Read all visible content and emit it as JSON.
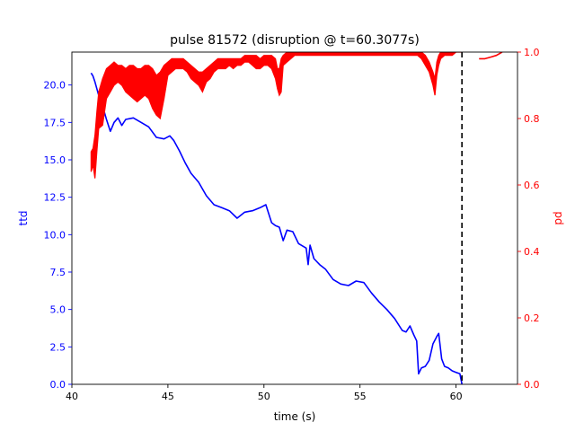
{
  "chart_data": {
    "type": "line",
    "title": "pulse 81572 (disruption @ t=60.3077s)",
    "xlabel": "time (s)",
    "ylabel_left": "ttd",
    "ylabel_right": "pd",
    "xlim": [
      40.0,
      63.2
    ],
    "ylim_left": [
      0.0,
      22.2
    ],
    "ylim_right": [
      0.0,
      1.0
    ],
    "x_ticks": [
      40,
      45,
      50,
      55,
      60
    ],
    "y_ticks_left": [
      0.0,
      2.5,
      5.0,
      7.5,
      10.0,
      12.5,
      15.0,
      17.5,
      20.0
    ],
    "y_ticks_right": [
      0.0,
      0.2,
      0.4,
      0.6,
      0.8,
      1.0
    ],
    "disruption_time": 60.3077,
    "colors": {
      "ttd": "#0000ff",
      "pd": "#ff0000",
      "axis_left": "#0000ff",
      "axis_right": "#ff0000",
      "vline": "#000000"
    },
    "series": [
      {
        "axis": "left",
        "x": [
          41.0,
          41.1,
          41.2,
          41.4,
          41.6,
          41.8,
          42.0,
          42.2,
          42.4,
          42.6,
          42.8,
          43.2,
          43.6,
          44.0,
          44.4,
          44.8,
          45.1,
          45.3,
          45.6,
          45.9,
          46.2,
          46.6,
          47.0,
          47.4,
          47.8,
          48.2,
          48.6,
          49.0,
          49.4,
          49.8,
          50.1,
          50.4,
          50.6,
          50.8,
          51.0,
          51.2,
          51.5,
          51.8,
          52.2,
          52.3,
          52.4,
          52.6,
          52.9,
          53.2,
          53.6,
          54.0,
          54.4,
          54.8,
          55.2,
          55.6,
          56.0,
          56.4,
          56.8,
          57.2,
          57.4,
          57.6,
          57.8,
          57.95,
          58.05,
          58.2,
          58.4,
          58.6,
          58.8,
          59.0,
          59.1,
          59.25,
          59.4,
          59.6,
          59.8,
          60.0,
          60.2,
          60.31
        ],
        "values": [
          20.8,
          20.6,
          20.2,
          19.3,
          18.6,
          17.7,
          16.9,
          17.5,
          17.8,
          17.3,
          17.7,
          17.8,
          17.5,
          17.2,
          16.5,
          16.4,
          16.6,
          16.3,
          15.6,
          14.8,
          14.1,
          13.5,
          12.6,
          12.0,
          11.8,
          11.6,
          11.1,
          11.5,
          11.6,
          11.8,
          12.0,
          10.8,
          10.6,
          10.5,
          9.6,
          10.3,
          10.2,
          9.4,
          9.1,
          8.0,
          9.3,
          8.4,
          8.0,
          7.7,
          7.0,
          6.7,
          6.6,
          6.9,
          6.8,
          6.1,
          5.5,
          5.0,
          4.4,
          3.6,
          3.5,
          3.9,
          3.3,
          2.9,
          0.7,
          1.1,
          1.2,
          1.6,
          2.7,
          3.2,
          3.4,
          1.7,
          1.2,
          1.1,
          0.9,
          0.8,
          0.7,
          0.0
        ]
      },
      {
        "axis": "right",
        "type": "band",
        "x": [
          41.0,
          41.1,
          41.2,
          41.3,
          41.4,
          41.6,
          41.8,
          42.0,
          42.2,
          42.4,
          42.6,
          42.8,
          43.0,
          43.2,
          43.4,
          43.6,
          43.8,
          44.0,
          44.2,
          44.4,
          44.6,
          44.8,
          45.0,
          45.2,
          45.4,
          45.6,
          45.8,
          46.0,
          46.2,
          46.4,
          46.6,
          46.8,
          47.0,
          47.2,
          47.4,
          47.6,
          47.8,
          48.0,
          48.2,
          48.4,
          48.6,
          48.8,
          49.0,
          49.2,
          49.4,
          49.6,
          49.8,
          50.0,
          50.2,
          50.4,
          50.6,
          50.7,
          50.8,
          50.9,
          51.0,
          51.2,
          51.4,
          51.6,
          52.0,
          52.5,
          53.0,
          54.0,
          55.0,
          56.0,
          57.0,
          57.5,
          58.0,
          58.2,
          58.4,
          58.6,
          58.8,
          58.9,
          59.0,
          59.1,
          59.2,
          59.4,
          59.6,
          59.8,
          60.0,
          60.2,
          60.31
        ],
        "low": [
          0.64,
          0.66,
          0.62,
          0.7,
          0.77,
          0.78,
          0.86,
          0.88,
          0.9,
          0.91,
          0.9,
          0.88,
          0.87,
          0.86,
          0.85,
          0.86,
          0.87,
          0.86,
          0.83,
          0.81,
          0.8,
          0.86,
          0.93,
          0.94,
          0.95,
          0.95,
          0.95,
          0.94,
          0.92,
          0.91,
          0.9,
          0.88,
          0.91,
          0.92,
          0.94,
          0.95,
          0.95,
          0.95,
          0.96,
          0.95,
          0.96,
          0.96,
          0.97,
          0.97,
          0.96,
          0.95,
          0.95,
          0.96,
          0.96,
          0.95,
          0.92,
          0.89,
          0.87,
          0.88,
          0.96,
          0.97,
          0.98,
          0.99,
          0.99,
          0.99,
          0.99,
          0.99,
          0.99,
          0.99,
          0.99,
          0.99,
          0.99,
          0.98,
          0.96,
          0.94,
          0.9,
          0.87,
          0.93,
          0.96,
          0.98,
          0.99,
          0.99,
          0.99,
          1.0,
          1.0,
          1.0
        ],
        "high": [
          0.7,
          0.71,
          0.75,
          0.82,
          0.88,
          0.92,
          0.95,
          0.96,
          0.97,
          0.96,
          0.96,
          0.95,
          0.96,
          0.96,
          0.95,
          0.95,
          0.96,
          0.96,
          0.95,
          0.93,
          0.94,
          0.96,
          0.97,
          0.98,
          0.98,
          0.98,
          0.98,
          0.97,
          0.96,
          0.95,
          0.94,
          0.94,
          0.95,
          0.96,
          0.97,
          0.98,
          0.98,
          0.98,
          0.98,
          0.98,
          0.98,
          0.98,
          0.99,
          0.99,
          0.99,
          0.99,
          0.98,
          0.99,
          0.99,
          0.99,
          0.98,
          0.95,
          0.95,
          0.98,
          0.99,
          1.0,
          1.0,
          1.0,
          1.0,
          1.0,
          1.0,
          1.0,
          1.0,
          1.0,
          1.0,
          1.0,
          1.0,
          1.0,
          0.99,
          0.97,
          0.94,
          0.92,
          0.97,
          0.99,
          1.0,
          1.0,
          1.0,
          1.0,
          1.0,
          1.0,
          1.0
        ]
      },
      {
        "axis": "right",
        "x": [
          61.2,
          61.5,
          61.8,
          62.1,
          62.4
        ],
        "values": [
          0.98,
          0.98,
          0.985,
          0.99,
          1.0
        ]
      }
    ]
  }
}
